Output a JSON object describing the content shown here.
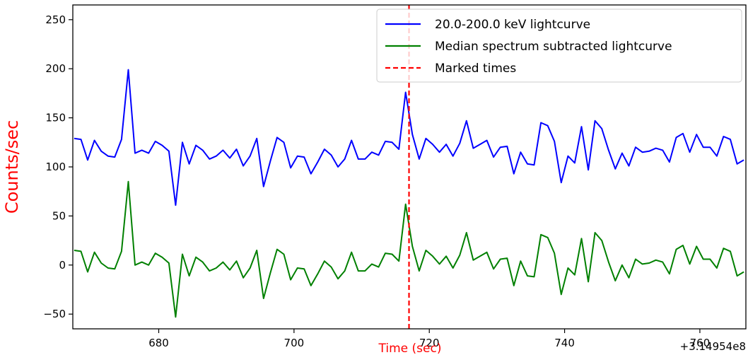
{
  "chart_data": {
    "type": "line",
    "xlabel": "Time (sec)",
    "ylabel": "Counts/sec",
    "x_offset_label": "+3.14954e8",
    "xlim": [
      667.3,
      766.8
    ],
    "ylim": [
      -65,
      265
    ],
    "xticks": [
      680,
      700,
      720,
      740,
      760
    ],
    "yticks": [
      -50,
      0,
      50,
      100,
      150,
      200,
      250
    ],
    "grid": false,
    "legend_position": "upper right",
    "colors": {
      "raw": "#0000ff",
      "subtracted": "#008000",
      "marked": "#ff0000",
      "ylabel": "#ff0000",
      "xlabel": "#ff0000"
    },
    "x": [
      667.5,
      668.5,
      669.5,
      670.5,
      671.5,
      672.5,
      673.5,
      674.5,
      675.5,
      676.5,
      677.5,
      678.5,
      679.5,
      680.5,
      681.5,
      682.5,
      683.5,
      684.5,
      685.5,
      686.5,
      687.5,
      688.5,
      689.5,
      690.5,
      691.5,
      692.5,
      693.5,
      694.5,
      695.5,
      696.5,
      697.5,
      698.5,
      699.5,
      700.5,
      701.5,
      702.5,
      703.5,
      704.5,
      705.5,
      706.5,
      707.5,
      708.5,
      709.5,
      710.5,
      711.5,
      712.5,
      713.5,
      714.5,
      715.5,
      716.5,
      717.5,
      718.5,
      719.5,
      720.5,
      721.5,
      722.5,
      723.5,
      724.5,
      725.5,
      726.5,
      727.5,
      728.5,
      729.5,
      730.5,
      731.5,
      732.5,
      733.5,
      734.5,
      735.5,
      736.5,
      737.5,
      738.5,
      739.5,
      740.5,
      741.5,
      742.5,
      743.5,
      744.5,
      745.5,
      746.5,
      747.5,
      748.5,
      749.5,
      750.5,
      751.5,
      752.5,
      753.5,
      754.5,
      755.5,
      756.5,
      757.5,
      758.5,
      759.5,
      760.5,
      761.5,
      762.5,
      763.5,
      764.5,
      765.5,
      766.5
    ],
    "series": [
      {
        "name": "20.0-200.0 keV lightcurve",
        "values": [
          129,
          128,
          107,
          127,
          116,
          111,
          110,
          128,
          199,
          114,
          117,
          114,
          126,
          122,
          116,
          61,
          125,
          103,
          122,
          117,
          108,
          111,
          117,
          109,
          118,
          101,
          111,
          129,
          80,
          106,
          130,
          125,
          99,
          111,
          110,
          93,
          105,
          118,
          112,
          100,
          108,
          127,
          108,
          108,
          115,
          112,
          126,
          125,
          118,
          176,
          133,
          108,
          129,
          123,
          115,
          123,
          111,
          124,
          147,
          119,
          123,
          127,
          110,
          120,
          121,
          93,
          115,
          103,
          102,
          145,
          142,
          126,
          84,
          111,
          104,
          141,
          97,
          147,
          139,
          117,
          98,
          114,
          101,
          120,
          115,
          116,
          119,
          117,
          105,
          130,
          134,
          115,
          133,
          120,
          120,
          111,
          131,
          128,
          103,
          107
        ]
      },
      {
        "name": "Median spectrum subtracted lightcurve",
        "values": [
          15,
          14,
          -7,
          13,
          2,
          -3,
          -4,
          14,
          85,
          0,
          3,
          0,
          12,
          8,
          2,
          -53,
          11,
          -11,
          8,
          3,
          -6,
          -3,
          3,
          -5,
          4,
          -13,
          -3,
          15,
          -34,
          -8,
          16,
          11,
          -15,
          -3,
          -4,
          -21,
          -9,
          4,
          -2,
          -14,
          -6,
          13,
          -6,
          -6,
          1,
          -2,
          12,
          11,
          4,
          62,
          19,
          -6,
          15,
          9,
          1,
          9,
          -3,
          10,
          33,
          5,
          9,
          13,
          -4,
          6,
          7,
          -21,
          4,
          -11,
          -12,
          31,
          28,
          12,
          -30,
          -3,
          -10,
          27,
          -17,
          33,
          25,
          3,
          -16,
          0,
          -13,
          6,
          1,
          2,
          5,
          3,
          -9,
          16,
          20,
          1,
          19,
          6,
          6,
          -3,
          17,
          14,
          -11,
          -7
        ]
      }
    ],
    "marked_times": [
      717
    ],
    "legend": [
      {
        "label": "20.0-200.0 keV lightcurve",
        "style": "solid",
        "color": "#0000ff"
      },
      {
        "label": "Median spectrum subtracted lightcurve",
        "style": "solid",
        "color": "#008000"
      },
      {
        "label": "Marked times",
        "style": "dashed",
        "color": "#ff0000"
      }
    ]
  }
}
